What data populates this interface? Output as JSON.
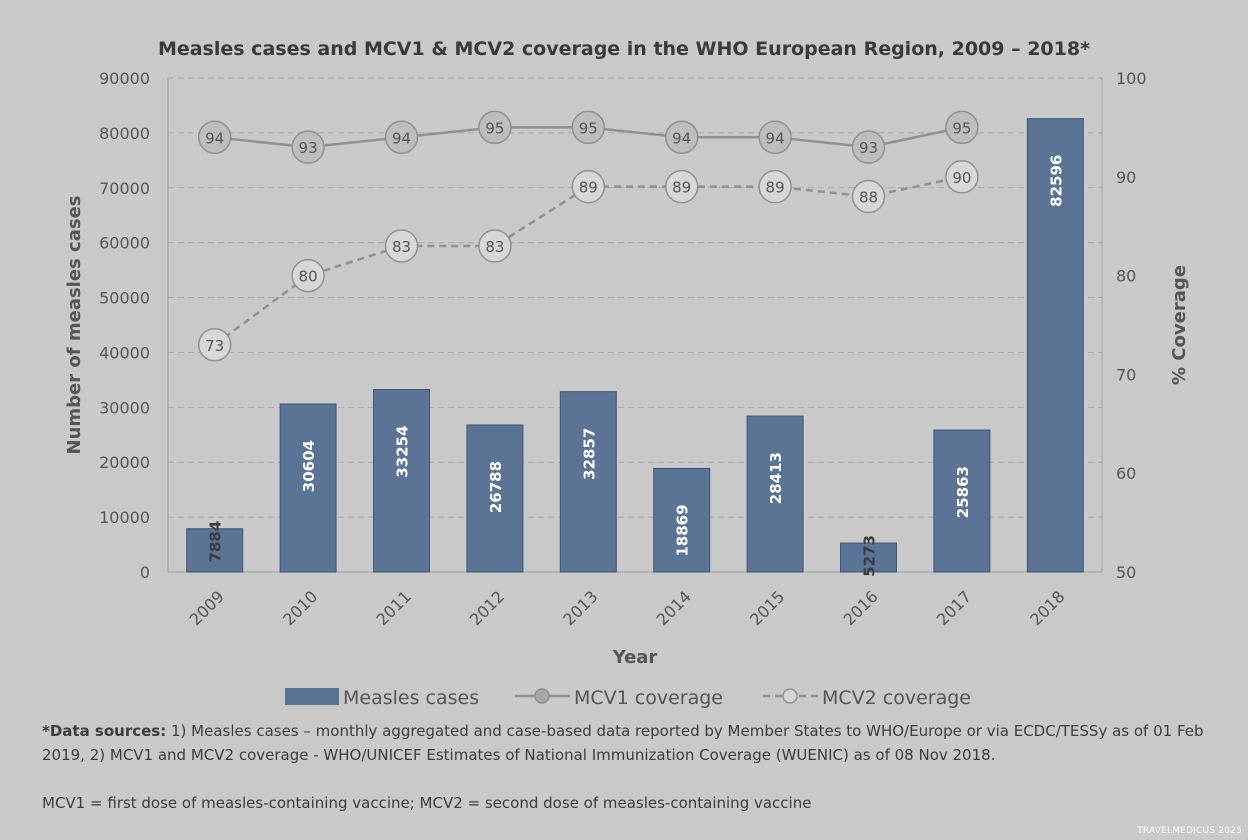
{
  "chart_data": {
    "type": "bar",
    "title": "Measles cases and MCV1 & MCV2 coverage in the WHO European Region, 2009 – 2018*",
    "xlabel": "Year",
    "ylabel": "Number of measles cases",
    "y2label": "% Coverage",
    "ylim": [
      0,
      90000
    ],
    "yticks": [
      "0",
      "10000",
      "20000",
      "30000",
      "40000",
      "50000",
      "60000",
      "70000",
      "80000",
      "90000"
    ],
    "y2lim": [
      50,
      100
    ],
    "y2ticks": [
      "50",
      "60",
      "70",
      "80",
      "90",
      "100"
    ],
    "grid": true,
    "legend_position": "bottom",
    "categories": [
      "2009",
      "2010",
      "2011",
      "2012",
      "2013",
      "2014",
      "2015",
      "2016",
      "2017",
      "2018"
    ],
    "series": [
      {
        "name": "Measles cases",
        "type": "bar",
        "axis": "left",
        "values": [
          7884,
          30604,
          33254,
          26788,
          32857,
          18869,
          28413,
          5273,
          25863,
          82596
        ],
        "labels": [
          "7884",
          "30604",
          "33254",
          "26788",
          "32857",
          "18869",
          "28413",
          "5273",
          "25863",
          "82596"
        ],
        "color": "#5b7395"
      },
      {
        "name": "MCV1 coverage",
        "type": "line",
        "axis": "right",
        "values": [
          94,
          93,
          94,
          95,
          95,
          94,
          94,
          93,
          95,
          null
        ],
        "labels": [
          "94",
          "93",
          "94",
          "95",
          "95",
          "94",
          "94",
          "93",
          "95",
          ""
        ],
        "color": "#909090"
      },
      {
        "name": "MCV2 coverage",
        "type": "line-dashed",
        "axis": "right",
        "values": [
          73,
          80,
          83,
          83,
          89,
          89,
          89,
          88,
          90,
          null
        ],
        "labels": [
          "73",
          "80",
          "83",
          "83",
          "89",
          "89",
          "89",
          "88",
          "90",
          ""
        ],
        "color": "#909090"
      }
    ]
  },
  "footnotes": {
    "sources_lead": "*Data sources:",
    "sources_text": " 1) Measles cases – monthly aggregated and case-based data reported by Member States to WHO/Europe or via ECDC/TESSy as of 01 Feb 2019, 2) MCV1 and MCV2 coverage - WHO/UNICEF Estimates of National Immunization Coverage (WUENIC)  as of 08 Nov 2018.",
    "definitions": "MCV1 = first dose of measles-containing vaccine; MCV2 = second dose of measles-containing vaccine"
  },
  "watermark": "TRAVELMEDICUS 2025"
}
